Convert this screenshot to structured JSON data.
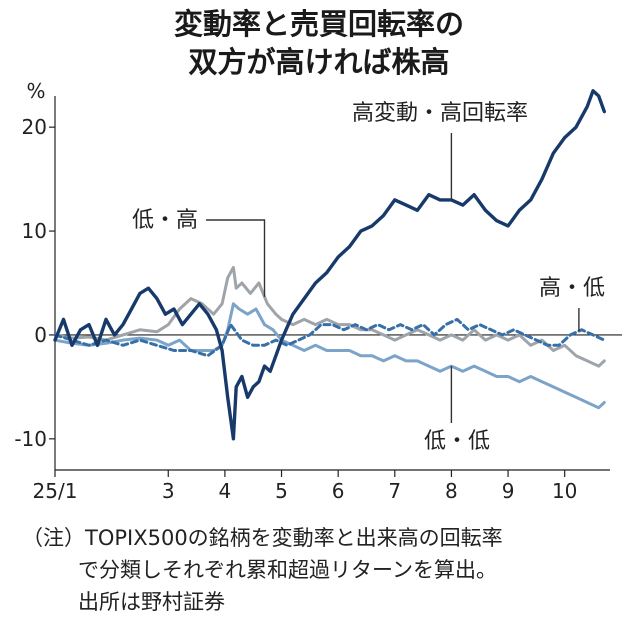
{
  "title_line1": "変動率と売買回転率の",
  "title_line2": "双方が高ければ株高",
  "chart_data": {
    "type": "line",
    "ylabel": "%",
    "ylim": [
      -13,
      23
    ],
    "yticks": [
      20,
      10,
      0,
      -10
    ],
    "ytick_labels": [
      "20",
      "10",
      "0",
      "-10"
    ],
    "xlim": [
      1,
      10.8
    ],
    "xticks": [
      1,
      3,
      4,
      5,
      6,
      7,
      8,
      9,
      10
    ],
    "xtick_labels": [
      "25/1",
      "3",
      "4",
      "5",
      "6",
      "7",
      "8",
      "9",
      "10"
    ],
    "colors": {
      "high_high": "#173a6b",
      "low_high": "#9ea4a9",
      "high_low": "#3770a8",
      "low_low": "#7ca4c9"
    },
    "series": [
      {
        "name": "高変動・高回転率",
        "key": "high_high",
        "style": "solid",
        "x": [
          1.0,
          1.15,
          1.3,
          1.45,
          1.6,
          1.75,
          1.9,
          2.05,
          2.2,
          2.35,
          2.5,
          2.65,
          2.8,
          2.95,
          3.1,
          3.25,
          3.4,
          3.55,
          3.7,
          3.85,
          3.95,
          4.05,
          4.15,
          4.2,
          4.3,
          4.4,
          4.5,
          4.6,
          4.7,
          4.8,
          4.9,
          5.0,
          5.2,
          5.4,
          5.6,
          5.8,
          6.0,
          6.2,
          6.4,
          6.6,
          6.8,
          7.0,
          7.2,
          7.4,
          7.6,
          7.8,
          8.0,
          8.2,
          8.4,
          8.6,
          8.8,
          9.0,
          9.2,
          9.4,
          9.6,
          9.8,
          10.0,
          10.2,
          10.4,
          10.5,
          10.6,
          10.7
        ],
        "y": [
          -0.5,
          1.5,
          -1.0,
          0.5,
          1.0,
          -1.0,
          1.5,
          0.0,
          1.0,
          2.5,
          4.0,
          4.5,
          3.5,
          2.0,
          2.5,
          1.0,
          2.0,
          3.0,
          2.0,
          0.5,
          -1.5,
          -6.0,
          -10.0,
          -5.0,
          -4.0,
          -6.0,
          -5.0,
          -4.5,
          -3.0,
          -3.5,
          -2.0,
          -0.5,
          2.0,
          3.5,
          5.0,
          6.0,
          7.5,
          8.5,
          10.0,
          10.5,
          11.5,
          13.0,
          12.5,
          12.0,
          13.5,
          13.0,
          13.0,
          12.5,
          13.5,
          12.0,
          11.0,
          10.5,
          12.0,
          13.0,
          15.0,
          17.5,
          19.0,
          20.0,
          22.0,
          23.5,
          23.0,
          21.5
        ]
      },
      {
        "name": "低・高",
        "key": "low_high",
        "style": "solid",
        "x": [
          1.0,
          1.3,
          1.6,
          1.9,
          2.2,
          2.5,
          2.8,
          3.0,
          3.2,
          3.4,
          3.6,
          3.8,
          3.95,
          4.05,
          4.15,
          4.2,
          4.3,
          4.45,
          4.6,
          4.75,
          4.9,
          5.0,
          5.2,
          5.4,
          5.6,
          5.8,
          6.0,
          6.2,
          6.4,
          6.6,
          6.8,
          7.0,
          7.2,
          7.4,
          7.6,
          7.8,
          8.0,
          8.2,
          8.4,
          8.6,
          8.8,
          9.0,
          9.2,
          9.4,
          9.6,
          9.8,
          10.0,
          10.2,
          10.4,
          10.6,
          10.7
        ],
        "y": [
          0.0,
          -0.3,
          -0.2,
          -0.5,
          0.0,
          0.5,
          0.3,
          1.0,
          2.5,
          3.5,
          3.0,
          2.0,
          3.0,
          5.5,
          6.5,
          4.5,
          5.0,
          4.0,
          5.0,
          3.0,
          2.0,
          1.5,
          1.0,
          1.5,
          1.0,
          1.5,
          1.0,
          1.0,
          0.5,
          0.5,
          0.0,
          -0.5,
          0.0,
          0.5,
          0.0,
          -0.5,
          0.0,
          -0.5,
          0.5,
          -0.5,
          0.0,
          -0.5,
          0.0,
          -1.0,
          -0.5,
          -1.5,
          -1.0,
          -2.0,
          -2.5,
          -3.0,
          -2.5
        ]
      },
      {
        "name": "高・低",
        "key": "high_low",
        "style": "dashed",
        "x": [
          1.0,
          1.3,
          1.6,
          1.9,
          2.2,
          2.5,
          2.8,
          3.1,
          3.4,
          3.7,
          3.95,
          4.1,
          4.3,
          4.5,
          4.7,
          4.9,
          5.1,
          5.3,
          5.5,
          5.7,
          5.9,
          6.1,
          6.3,
          6.5,
          6.7,
          6.9,
          7.1,
          7.3,
          7.5,
          7.7,
          7.9,
          8.1,
          8.3,
          8.5,
          8.7,
          8.9,
          9.1,
          9.3,
          9.5,
          9.7,
          9.9,
          10.1,
          10.3,
          10.5,
          10.7
        ],
        "y": [
          0.0,
          -0.5,
          -1.0,
          -0.5,
          -1.0,
          -0.5,
          -1.0,
          -1.5,
          -1.5,
          -2.0,
          -1.0,
          1.0,
          -0.5,
          -1.0,
          -1.0,
          -0.5,
          -1.0,
          -0.5,
          0.0,
          1.0,
          1.0,
          0.5,
          1.0,
          0.5,
          1.0,
          0.5,
          1.0,
          0.5,
          1.0,
          0.0,
          1.0,
          1.5,
          0.5,
          1.0,
          0.5,
          0.0,
          0.5,
          0.0,
          -0.5,
          -1.0,
          -1.0,
          0.0,
          0.5,
          0.0,
          -0.5
        ]
      },
      {
        "name": "低・低",
        "key": "low_low",
        "style": "solid",
        "x": [
          1.0,
          1.3,
          1.6,
          1.9,
          2.2,
          2.5,
          2.8,
          3.0,
          3.2,
          3.4,
          3.6,
          3.8,
          3.95,
          4.05,
          4.15,
          4.25,
          4.4,
          4.55,
          4.7,
          4.85,
          5.0,
          5.2,
          5.4,
          5.6,
          5.8,
          6.0,
          6.2,
          6.4,
          6.6,
          6.8,
          7.0,
          7.2,
          7.4,
          7.6,
          7.8,
          8.0,
          8.2,
          8.4,
          8.6,
          8.8,
          9.0,
          9.2,
          9.4,
          9.6,
          9.8,
          10.0,
          10.2,
          10.4,
          10.6,
          10.7
        ],
        "y": [
          -0.5,
          -0.8,
          -1.0,
          -0.8,
          -0.5,
          -0.3,
          -0.5,
          -1.0,
          -0.5,
          -1.5,
          -1.5,
          -1.5,
          -1.0,
          0.5,
          3.0,
          2.5,
          2.0,
          2.5,
          1.0,
          0.5,
          -0.5,
          -1.0,
          -1.5,
          -1.0,
          -1.5,
          -1.5,
          -1.5,
          -2.0,
          -2.0,
          -2.5,
          -2.0,
          -2.5,
          -2.5,
          -3.0,
          -3.5,
          -3.0,
          -3.5,
          -3.0,
          -3.5,
          -4.0,
          -4.0,
          -4.5,
          -4.0,
          -4.5,
          -5.0,
          -5.5,
          -6.0,
          -6.5,
          -7.0,
          -6.5
        ]
      }
    ],
    "annotations": [
      {
        "text": "高変動・高回転率",
        "series": "high_high",
        "at_x": 8.0
      },
      {
        "text": "低・高",
        "series": "low_high",
        "at_x": 4.7
      },
      {
        "text": "高・低",
        "series": "high_low",
        "at_x": 10.25
      },
      {
        "text": "低・低",
        "series": "low_low",
        "at_x": 8.0
      }
    ]
  },
  "note": {
    "label": "（注）",
    "line1": "TOPIX500の銘柄を変動率と出来高の回転率",
    "line2": "で分類しそれぞれ累和超過リターンを算出。",
    "line3": "出所は野村証券"
  }
}
